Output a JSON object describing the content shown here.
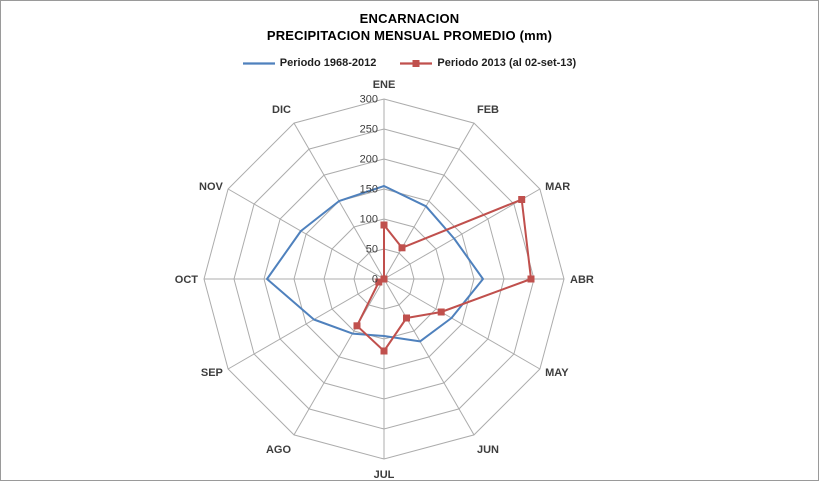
{
  "title": "ENCARNACION",
  "subtitle": "PRECIPITACION MENSUAL PROMEDIO (mm)",
  "legend": [
    {
      "label": "Periodo 1968-2012",
      "color": "#4F81BD",
      "marker": "none"
    },
    {
      "label": "Periodo 2013 (al 02-set-13)",
      "color": "#C0504D",
      "marker": "square"
    }
  ],
  "colors": {
    "grid": "#ACACAC",
    "frame_border": "#9a9a9a",
    "series_blue": "#4F81BD",
    "series_red": "#C0504D",
    "text": "#3d3d3d"
  },
  "chart_data": {
    "type": "radar",
    "title": "ENCARNACION",
    "subtitle": "PRECIPITACION MENSUAL PROMEDIO (mm)",
    "categories": [
      "ENE",
      "FEB",
      "MAR",
      "ABR",
      "MAY",
      "JUN",
      "JUL",
      "AGO",
      "SEP",
      "OCT",
      "NOV",
      "DIC"
    ],
    "series": [
      {
        "name": "Periodo 1968-2012",
        "color": "#4F81BD",
        "marker": "none",
        "values": [
          155,
          140,
          135,
          165,
          130,
          120,
          95,
          105,
          135,
          195,
          160,
          150
        ]
      },
      {
        "name": "Periodo 2013 (al 02-set-13)",
        "color": "#C0504D",
        "marker": "square",
        "values": [
          90,
          60,
          265,
          245,
          110,
          75,
          120,
          90,
          10,
          0,
          0,
          0
        ]
      }
    ],
    "r_axis": {
      "min": 0,
      "max": 300,
      "step": 50,
      "ticks": [
        0,
        50,
        100,
        150,
        200,
        250,
        300
      ]
    },
    "grid": true,
    "grid_shape": "polygon",
    "legend_position": "top"
  }
}
